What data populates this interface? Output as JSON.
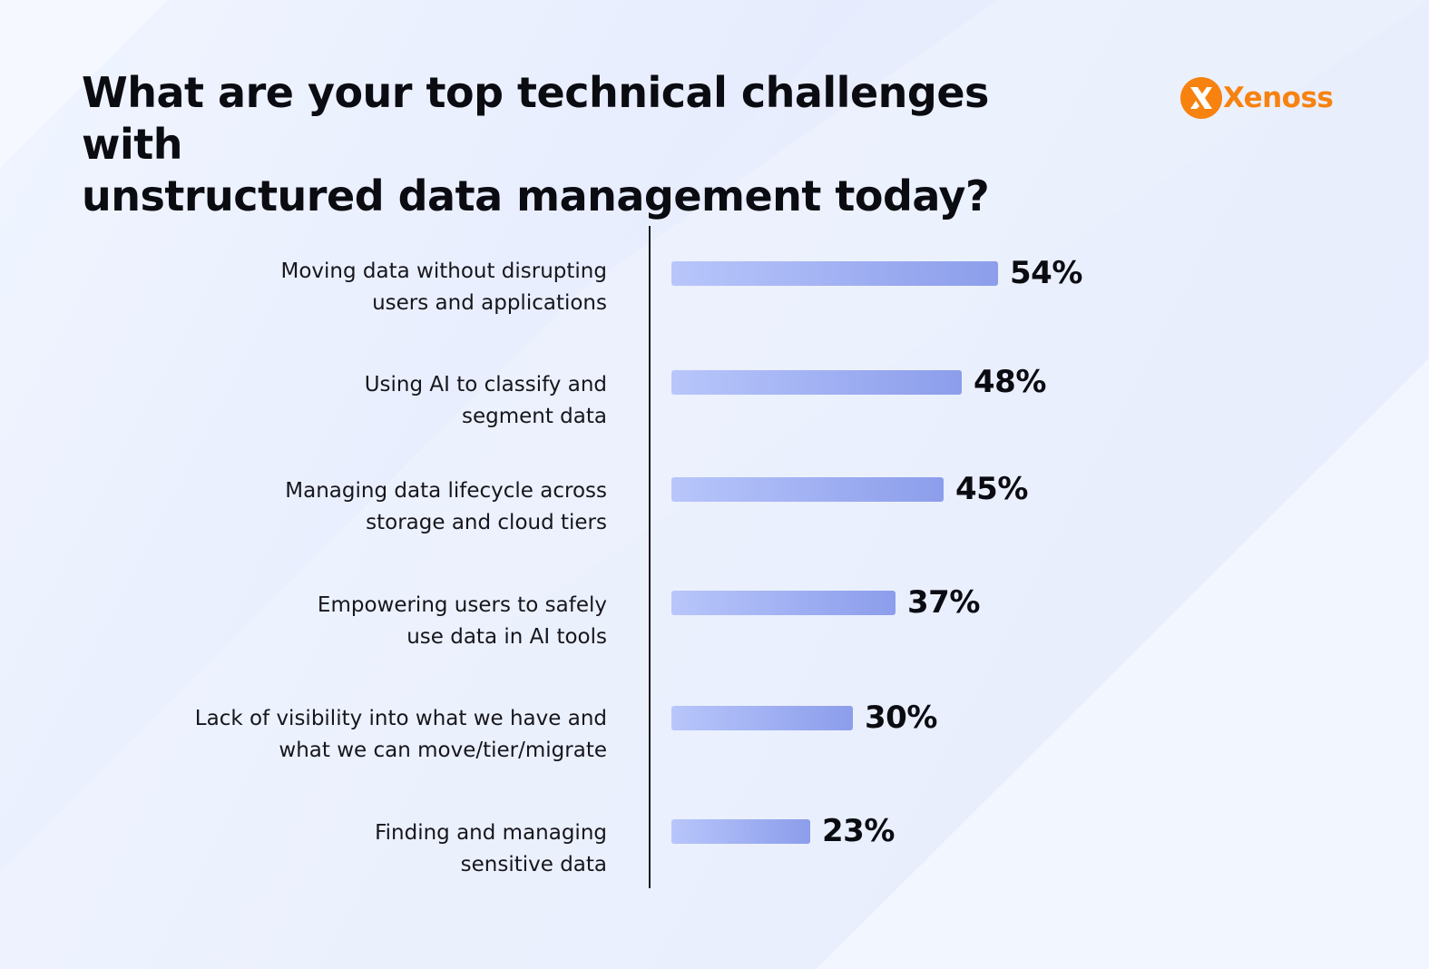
{
  "title_lines": [
    "What are your top technical challenges with",
    "unstructured data management today?"
  ],
  "brand": {
    "name": "Xenoss",
    "color": "#F7820F",
    "icon": "xenoss-logo-icon"
  },
  "bar_colors": [
    "#B8C6FB",
    "#8C9DEB"
  ],
  "chart_data": {
    "type": "bar",
    "orientation": "horizontal",
    "title": "What are your top technical challenges with unstructured data management today?",
    "value_suffix": "%",
    "xlim": [
      0,
      100
    ],
    "grid": false,
    "legend": "none",
    "categories": [
      [
        "Moving data without disrupting",
        "users and applications"
      ],
      [
        "Using AI to classify and",
        "segment data"
      ],
      [
        "Managing data lifecycle across",
        "storage and cloud tiers"
      ],
      [
        "Empowering users to safely",
        "use data in AI tools"
      ],
      [
        "Lack of visibility into what we have and",
        "what we can move/tier/migrate"
      ],
      [
        "Finding and managing",
        "sensitive data"
      ]
    ],
    "values": [
      54,
      48,
      45,
      37,
      30,
      23
    ],
    "value_labels": [
      "54%",
      "48%",
      "45%",
      "37%",
      "30%",
      "23%"
    ]
  }
}
